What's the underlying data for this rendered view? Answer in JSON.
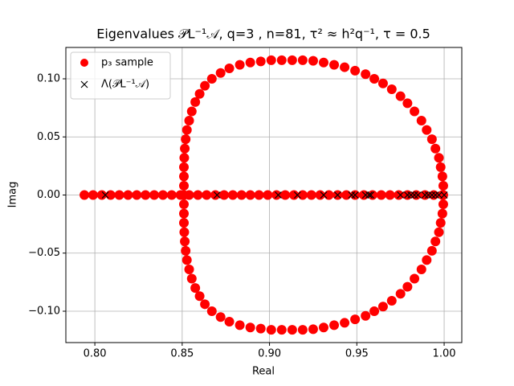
{
  "chart_data": {
    "type": "scatter",
    "title": "Eigenvalues 𝒫L⁻¹𝒜, q=3 , n=81, τ² ≈ h²q⁻¹, τ = 0.5",
    "xlabel": "Real",
    "ylabel": "Imag",
    "xlim": [
      0.7834,
      1.0101
    ],
    "ylim": [
      -0.127,
      0.127
    ],
    "xticks": [
      {
        "value": 0.8,
        "label": "0.80"
      },
      {
        "value": 0.85,
        "label": "0.85"
      },
      {
        "value": 0.9,
        "label": "0.90"
      },
      {
        "value": 0.95,
        "label": "0.95"
      },
      {
        "value": 1.0,
        "label": "1.00"
      }
    ],
    "yticks": [
      {
        "value": -0.1,
        "label": "−0.10"
      },
      {
        "value": -0.05,
        "label": "−0.05"
      },
      {
        "value": 0,
        "label": "0.00"
      },
      {
        "value": 0.05,
        "label": "0.05"
      },
      {
        "value": 0.1,
        "label": "0.10"
      }
    ],
    "grid": true,
    "legend": "upper left",
    "series": [
      {
        "name": "p₃ sample",
        "color": "#ff0000",
        "marker": "o",
        "x": [
          0.851,
          0.851,
          0.851,
          0.851,
          0.8512,
          0.8515,
          0.852,
          0.8527,
          0.854,
          0.8555,
          0.8575,
          0.86,
          0.863,
          0.867,
          0.872,
          0.877,
          0.883,
          0.889,
          0.895,
          0.901,
          0.907,
          0.913,
          0.919,
          0.925,
          0.931,
          0.937,
          0.943,
          0.949,
          0.955,
          0.96,
          0.965,
          0.97,
          0.975,
          0.979,
          0.983,
          0.987,
          0.99,
          0.993,
          0.995,
          0.997,
          0.998,
          0.999,
          0.9995,
          0.9995,
          0.9995,
          0.999,
          0.998,
          0.997,
          0.995,
          0.993,
          0.99,
          0.987,
          0.983,
          0.979,
          0.975,
          0.97,
          0.965,
          0.96,
          0.955,
          0.949,
          0.943,
          0.937,
          0.931,
          0.925,
          0.919,
          0.913,
          0.907,
          0.901,
          0.895,
          0.889,
          0.883,
          0.877,
          0.872,
          0.867,
          0.863,
          0.86,
          0.8575,
          0.8555,
          0.854,
          0.8527,
          0.852,
          0.8515,
          0.8512,
          0.851,
          0.851,
          0.851,
          0.794,
          0.799,
          0.804,
          0.809,
          0.814,
          0.819,
          0.824,
          0.829,
          0.834,
          0.839,
          0.844,
          0.849,
          0.854,
          0.859,
          0.864,
          0.869,
          0.874,
          0.879,
          0.884,
          0.889,
          0.894,
          0.899,
          0.904,
          0.909,
          0.914,
          0.919,
          0.924,
          0.929,
          0.934,
          0.939,
          0.944,
          0.949,
          0.954,
          0.959,
          0.964,
          0.969,
          0.974,
          0.979,
          0.984,
          0.989,
          0.994,
          0.999
        ],
        "y": [
          0,
          0.008,
          0.016,
          0.024,
          0.032,
          0.04,
          0.048,
          0.056,
          0.064,
          0.072,
          0.08,
          0.087,
          0.094,
          0.1,
          0.105,
          0.109,
          0.112,
          0.114,
          0.115,
          0.116,
          0.116,
          0.116,
          0.116,
          0.1155,
          0.114,
          0.112,
          0.11,
          0.107,
          0.104,
          0.1,
          0.096,
          0.091,
          0.085,
          0.079,
          0.072,
          0.064,
          0.056,
          0.048,
          0.04,
          0.032,
          0.024,
          0.016,
          0.008,
          0,
          -0.008,
          -0.016,
          -0.024,
          -0.032,
          -0.04,
          -0.048,
          -0.056,
          -0.064,
          -0.072,
          -0.079,
          -0.085,
          -0.091,
          -0.096,
          -0.1,
          -0.104,
          -0.107,
          -0.11,
          -0.112,
          -0.114,
          -0.1155,
          -0.116,
          -0.116,
          -0.116,
          -0.116,
          -0.115,
          -0.114,
          -0.112,
          -0.109,
          -0.105,
          -0.1,
          -0.094,
          -0.087,
          -0.08,
          -0.072,
          -0.064,
          -0.056,
          -0.048,
          -0.04,
          -0.032,
          -0.024,
          -0.016,
          -0.008,
          0,
          0,
          0,
          0,
          0,
          0,
          0,
          0,
          0,
          0,
          0,
          0,
          0,
          0,
          0,
          0,
          0,
          0,
          0,
          0,
          0,
          0,
          0,
          0,
          0,
          0,
          0,
          0,
          0,
          0,
          0,
          0,
          0,
          0,
          0,
          0,
          0,
          0,
          0,
          0,
          0,
          0
        ]
      },
      {
        "name": "Λ(𝒫L⁻¹𝒜)",
        "color": "#000000",
        "marker": "x",
        "x": [
          0.806,
          0.87,
          0.905,
          0.916,
          0.931,
          0.939,
          0.947,
          0.949,
          0.955,
          0.957,
          0.958,
          0.975,
          0.979,
          0.981,
          0.983,
          0.985,
          0.989,
          0.991,
          0.993,
          0.995,
          0.997,
          1.0
        ],
        "y": [
          0,
          0,
          0,
          0,
          0,
          0,
          0,
          0,
          0,
          0,
          0,
          0,
          0,
          0,
          0,
          0,
          0,
          0,
          0,
          0,
          0,
          0
        ]
      }
    ]
  }
}
